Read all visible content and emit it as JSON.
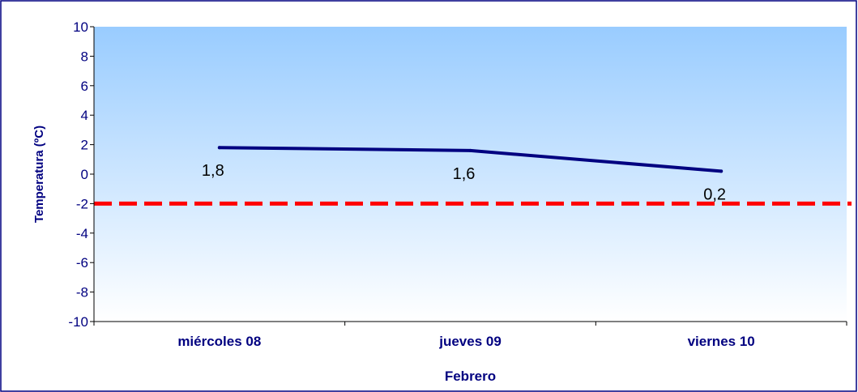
{
  "chart_data": {
    "type": "line",
    "title": "",
    "xlabel": "Febrero",
    "ylabel": "Temperatura (ºC)",
    "categories": [
      "miércoles 08",
      "jueves 09",
      "viernes 10"
    ],
    "ylim": [
      -10,
      10
    ],
    "yticks": [
      10,
      8,
      6,
      4,
      2,
      0,
      -2,
      -4,
      -6,
      -8,
      -10
    ],
    "ytick_labels": [
      "10",
      "8",
      "6",
      "4",
      "2",
      "0",
      "-2",
      "-4",
      "-6",
      "-8",
      "-10"
    ],
    "series": [
      {
        "values": [
          1.8,
          1.6,
          0.2
        ],
        "labels": [
          "1,8",
          "1,6",
          "0,2"
        ],
        "color": "#000080"
      }
    ],
    "reference_lines": [
      {
        "value": -2,
        "color": "#ff0000",
        "style": "dashed"
      }
    ],
    "grid": false,
    "legend": "none",
    "colors": {
      "plot_bg_top": "#99ccff",
      "plot_bg_bottom": "#ffffff",
      "axis_text": "#000080",
      "frame": "#000080",
      "value_label": "#000000"
    }
  }
}
